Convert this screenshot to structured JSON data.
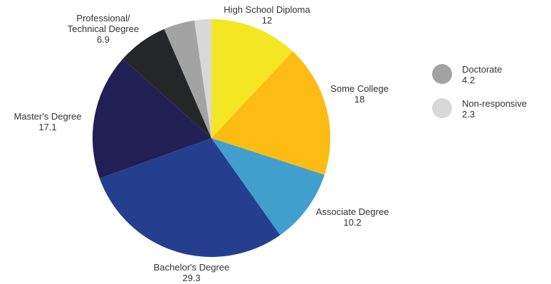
{
  "chart_data": {
    "type": "pie",
    "title": "",
    "start_angle_deg": 0,
    "direction": "clockwise",
    "slices": [
      {
        "label": "High School Diploma",
        "value": 12,
        "color": "#F5E623"
      },
      {
        "label": "Some College",
        "value": 18,
        "color": "#FCBC14"
      },
      {
        "label": "Associate Degree",
        "value": 10.2,
        "color": "#419FCE"
      },
      {
        "label": "Bachelor's Degree",
        "value": 29.3,
        "color": "#253F8F"
      },
      {
        "label": "Master's Degree",
        "value": 17.1,
        "color": "#211F54"
      },
      {
        "label": "Professional/ Technical Degree",
        "label_lines": [
          "Professional/",
          "Technical Degree"
        ],
        "value": 6.9,
        "color": "#252627"
      },
      {
        "label": "Doctorate",
        "value": 4.2,
        "color": "#A3A3A3"
      },
      {
        "label": "Non-responsive",
        "value": 2.3,
        "color": "#D8D8D8"
      }
    ],
    "legend": {
      "placement": "right",
      "items": [
        {
          "label": "Doctorate",
          "value": "4.2",
          "color": "#A3A3A3"
        },
        {
          "label": "Non-responsive",
          "value": "2.3",
          "color": "#D8D8D8"
        }
      ]
    }
  }
}
